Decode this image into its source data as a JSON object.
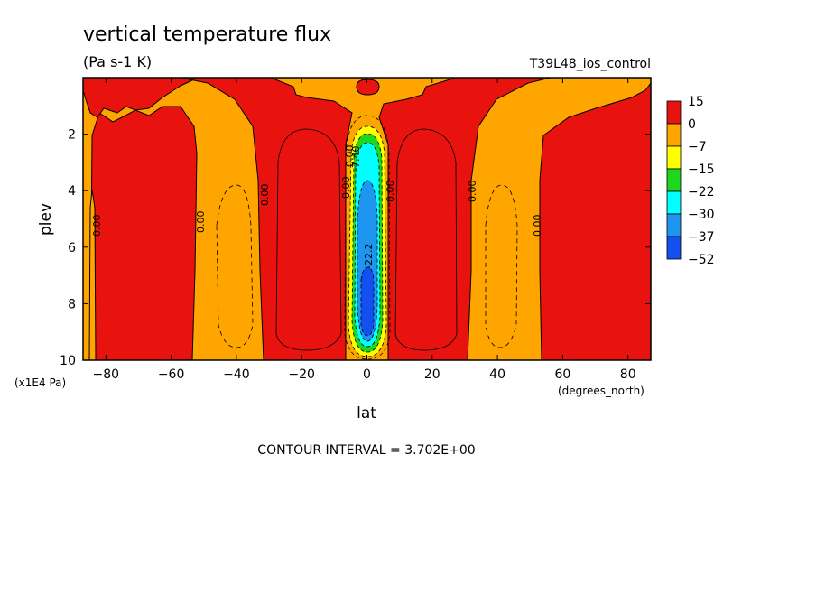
{
  "chart_data": {
    "type": "heatmap",
    "title": "vertical temperature flux",
    "units": "(Pa s-1 K)",
    "dataset": "T39L48_ios_control",
    "xlabel": "lat",
    "ylabel": "plev",
    "x_unit_label": "(degrees_north)",
    "y_unit_label": "(x1E4 Pa)",
    "xlim": [
      -87,
      87
    ],
    "ylim": [
      10,
      0
    ],
    "x_ticks": [
      "-80",
      "-60",
      "-40",
      "-20",
      "0",
      "20",
      "40",
      "60",
      "80"
    ],
    "y_ticks": [
      "2",
      "4",
      "6",
      "8",
      "10"
    ],
    "colorbar": {
      "labels": [
        "15",
        "0",
        "-7",
        "-15",
        "-22",
        "-30",
        "-37",
        "-52"
      ],
      "colors": [
        "#e8120f",
        "#ffa500",
        "#ffff00",
        "#1ed81e",
        "#00ffff",
        "#1e96f0",
        "#1450f0"
      ]
    },
    "contour_labels": [
      "0.00",
      "0.00",
      "0.00",
      "0.00",
      "0.00",
      "0.00",
      "0.00",
      "0.00",
      "0.00",
      "-7.40",
      "-22.2"
    ],
    "contour_interval": "CONTOUR INTERVAL = 3.702E+00"
  }
}
